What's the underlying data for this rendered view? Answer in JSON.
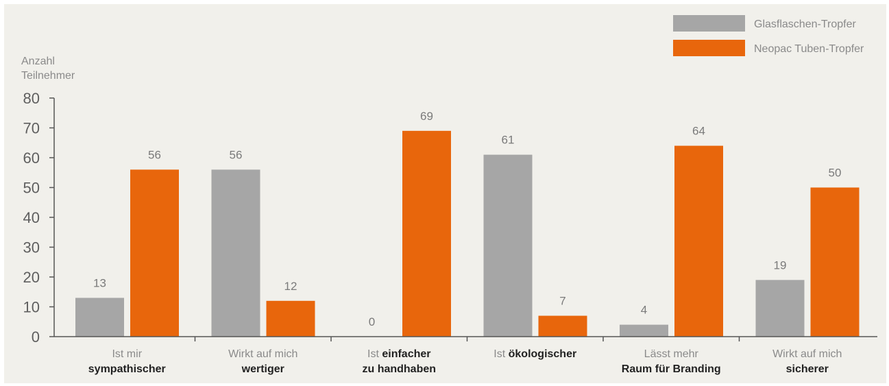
{
  "chart_data": {
    "type": "bar",
    "ylabel_lines": [
      "Anzahl",
      "Teilnehmer"
    ],
    "ylim": [
      0,
      80
    ],
    "yticks": [
      0,
      10,
      20,
      30,
      40,
      50,
      60,
      70,
      80
    ],
    "categories": [
      {
        "line1": [
          {
            "text": "Ist mir",
            "bold": false
          }
        ],
        "line2": [
          {
            "text": "sympathischer",
            "bold": true
          }
        ]
      },
      {
        "line1": [
          {
            "text": "Wirkt auf mich",
            "bold": false
          }
        ],
        "line2": [
          {
            "text": "wertiger",
            "bold": true
          }
        ]
      },
      {
        "line1": [
          {
            "text": "Ist ",
            "bold": false
          },
          {
            "text": "einfacher",
            "bold": true
          }
        ],
        "line2": [
          {
            "text": "zu handhaben",
            "bold": true
          }
        ]
      },
      {
        "line1": [
          {
            "text": "Ist ",
            "bold": false
          },
          {
            "text": "ökologischer",
            "bold": true
          }
        ],
        "line2": []
      },
      {
        "line1": [
          {
            "text": "Lässt mehr",
            "bold": false
          }
        ],
        "line2": [
          {
            "text": "Raum für Branding",
            "bold": true
          }
        ]
      },
      {
        "line1": [
          {
            "text": "Wirkt auf mich",
            "bold": false
          }
        ],
        "line2": [
          {
            "text": "sicherer",
            "bold": true
          }
        ]
      }
    ],
    "series": [
      {
        "name": "Glasflaschen-Tropfer",
        "color": "#a6a6a6",
        "values": [
          13,
          56,
          0,
          61,
          4,
          19
        ]
      },
      {
        "name": "Neopac Tuben-Tropfer",
        "color": "#e8660c",
        "values": [
          56,
          12,
          69,
          7,
          64,
          50
        ]
      }
    ],
    "legend_position": "top-right",
    "grid": false
  }
}
